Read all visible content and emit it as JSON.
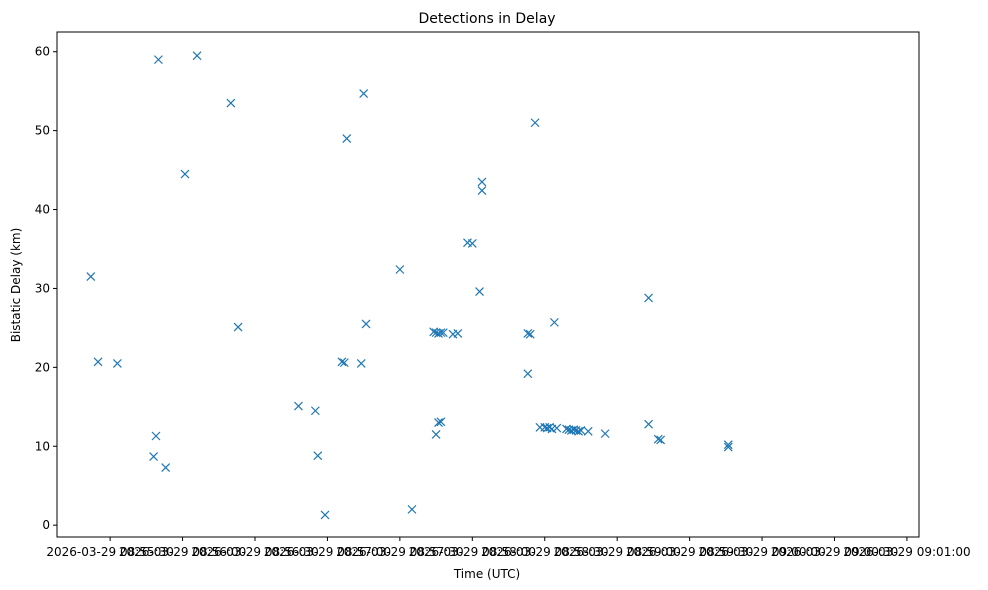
{
  "chart_data": {
    "type": "scatter",
    "title": "Detections in Delay",
    "xlabel": "Time (UTC)",
    "ylabel": "Bistatic Delay (km)",
    "marker": "x",
    "marker_color": "#1f77b4",
    "xlim": [
      "2026-03-29 08:55:08",
      "2026-03-29 09:01:05"
    ],
    "ylim": [
      -1.5,
      62.5
    ],
    "xticks": [
      {
        "t": "2026-03-29 08:55:30",
        "label": "2026-03-29 08:55:30"
      },
      {
        "t": "2026-03-29 08:56:00",
        "label": "2026-03-29 08:56:00"
      },
      {
        "t": "2026-03-29 08:56:30",
        "label": "2026-03-29 08:56:30"
      },
      {
        "t": "2026-03-29 08:57:00",
        "label": "2026-03-29 08:57:00"
      },
      {
        "t": "2026-03-29 08:57:30",
        "label": "2026-03-29 08:57:30"
      },
      {
        "t": "2026-03-29 08:58:00",
        "label": "2026-03-29 08:58:00"
      },
      {
        "t": "2026-03-29 08:58:30",
        "label": "2026-03-29 08:58:30"
      },
      {
        "t": "2026-03-29 08:59:00",
        "label": "2026-03-29 08:59:00"
      },
      {
        "t": "2026-03-29 08:59:30",
        "label": "2026-03-29 08:59:30"
      },
      {
        "t": "2026-03-29 09:00:00",
        "label": "2026-03-29 09:00:00"
      },
      {
        "t": "2026-03-29 09:00:30",
        "label": "2026-03-29 09:00:30"
      },
      {
        "t": "2026-03-29 09:01:00",
        "label": "2026-03-29 09:01:00"
      }
    ],
    "yticks": [
      0,
      10,
      20,
      30,
      40,
      50,
      60
    ],
    "grid": false,
    "points": [
      {
        "x": "2026-03-29 08:55:22",
        "y": 31.5
      },
      {
        "x": "2026-03-29 08:55:25",
        "y": 20.7
      },
      {
        "x": "2026-03-29 08:55:33",
        "y": 20.5
      },
      {
        "x": "2026-03-29 08:55:48",
        "y": 8.7
      },
      {
        "x": "2026-03-29 08:55:49",
        "y": 11.3
      },
      {
        "x": "2026-03-29 08:55:50",
        "y": 59.0
      },
      {
        "x": "2026-03-29 08:55:53",
        "y": 7.3
      },
      {
        "x": "2026-03-29 08:56:01",
        "y": 44.5
      },
      {
        "x": "2026-03-29 08:56:06",
        "y": 59.5
      },
      {
        "x": "2026-03-29 08:56:20",
        "y": 53.5
      },
      {
        "x": "2026-03-29 08:56:23",
        "y": 25.1
      },
      {
        "x": "2026-03-29 08:56:48",
        "y": 15.1
      },
      {
        "x": "2026-03-29 08:56:55",
        "y": 14.5
      },
      {
        "x": "2026-03-29 08:56:56",
        "y": 8.8
      },
      {
        "x": "2026-03-29 08:56:59",
        "y": 1.3
      },
      {
        "x": "2026-03-29 08:57:06",
        "y": 20.7
      },
      {
        "x": "2026-03-29 08:57:07",
        "y": 20.6
      },
      {
        "x": "2026-03-29 08:57:08",
        "y": 49.0
      },
      {
        "x": "2026-03-29 08:57:14",
        "y": 20.5
      },
      {
        "x": "2026-03-29 08:57:15",
        "y": 54.7
      },
      {
        "x": "2026-03-29 08:57:16",
        "y": 25.5
      },
      {
        "x": "2026-03-29 08:57:30",
        "y": 32.4
      },
      {
        "x": "2026-03-29 08:57:35",
        "y": 2.0
      },
      {
        "x": "2026-03-29 08:57:44",
        "y": 24.5
      },
      {
        "x": "2026-03-29 08:57:45",
        "y": 24.4
      },
      {
        "x": "2026-03-29 08:57:45",
        "y": 11.5
      },
      {
        "x": "2026-03-29 08:57:46",
        "y": 13.0
      },
      {
        "x": "2026-03-29 08:57:46",
        "y": 24.3
      },
      {
        "x": "2026-03-29 08:57:47",
        "y": 13.1
      },
      {
        "x": "2026-03-29 08:57:47",
        "y": 24.4
      },
      {
        "x": "2026-03-29 08:57:48",
        "y": 24.4
      },
      {
        "x": "2026-03-29 08:57:52",
        "y": 24.2
      },
      {
        "x": "2026-03-29 08:57:54",
        "y": 24.3
      },
      {
        "x": "2026-03-29 08:57:58",
        "y": 35.8
      },
      {
        "x": "2026-03-29 08:58:00",
        "y": 35.7
      },
      {
        "x": "2026-03-29 08:58:03",
        "y": 29.6
      },
      {
        "x": "2026-03-29 08:58:04",
        "y": 43.5
      },
      {
        "x": "2026-03-29 08:58:04",
        "y": 42.4
      },
      {
        "x": "2026-03-29 08:58:23",
        "y": 19.2
      },
      {
        "x": "2026-03-29 08:58:23",
        "y": 24.3
      },
      {
        "x": "2026-03-29 08:58:24",
        "y": 24.2
      },
      {
        "x": "2026-03-29 08:58:26",
        "y": 51.0
      },
      {
        "x": "2026-03-29 08:58:28",
        "y": 12.4
      },
      {
        "x": "2026-03-29 08:58:30",
        "y": 12.4
      },
      {
        "x": "2026-03-29 08:58:31",
        "y": 12.3
      },
      {
        "x": "2026-03-29 08:58:32",
        "y": 12.4
      },
      {
        "x": "2026-03-29 08:58:33",
        "y": 12.2
      },
      {
        "x": "2026-03-29 08:58:34",
        "y": 25.7
      },
      {
        "x": "2026-03-29 08:58:35",
        "y": 12.3
      },
      {
        "x": "2026-03-29 08:58:39",
        "y": 12.2
      },
      {
        "x": "2026-03-29 08:58:40",
        "y": 12.1
      },
      {
        "x": "2026-03-29 08:58:41",
        "y": 12.0
      },
      {
        "x": "2026-03-29 08:58:42",
        "y": 12.1
      },
      {
        "x": "2026-03-29 08:58:43",
        "y": 12.0
      },
      {
        "x": "2026-03-29 08:58:44",
        "y": 11.9
      },
      {
        "x": "2026-03-29 08:58:45",
        "y": 12.0
      },
      {
        "x": "2026-03-29 08:58:48",
        "y": 11.9
      },
      {
        "x": "2026-03-29 08:58:55",
        "y": 11.6
      },
      {
        "x": "2026-03-29 08:59:13",
        "y": 28.8
      },
      {
        "x": "2026-03-29 08:59:13",
        "y": 12.8
      },
      {
        "x": "2026-03-29 08:59:17",
        "y": 10.9
      },
      {
        "x": "2026-03-29 08:59:18",
        "y": 10.8
      },
      {
        "x": "2026-03-29 08:59:46",
        "y": 10.2
      },
      {
        "x": "2026-03-29 08:59:46",
        "y": 9.9
      }
    ]
  }
}
